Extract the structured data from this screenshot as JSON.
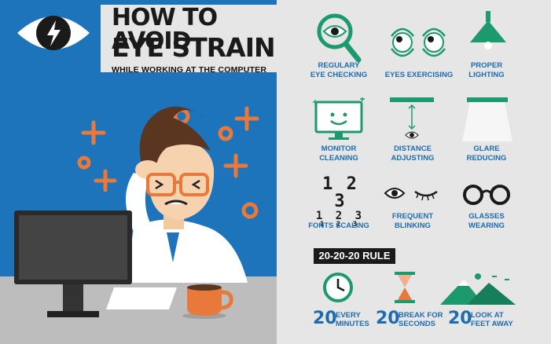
{
  "title": {
    "line1": "HOW TO AVOID",
    "line2": "EYE STRAIN",
    "subtitle": "WHILE WORKING AT THE COMPUTER"
  },
  "tips": [
    {
      "label": "REGULARY\nEYE CHECKING",
      "icon": "magnifier-eye-icon"
    },
    {
      "label": "EYES EXERCISING",
      "icon": "rotating-eyes-icon"
    },
    {
      "label": "PROPER\nLIGHTING",
      "icon": "lamp-icon"
    },
    {
      "label": "MONITOR\nCLEANING",
      "icon": "clean-monitor-icon"
    },
    {
      "label": "DISTANCE\nADJUSTING",
      "icon": "distance-icon"
    },
    {
      "label": "GLARE\nREDUCING",
      "icon": "glare-icon"
    },
    {
      "label": "FONTS SCALING",
      "icon": "font-scale-icon"
    },
    {
      "label": "FREQUENT\nBLINKING",
      "icon": "blink-icon"
    },
    {
      "label": "GLASSES\nWEARING",
      "icon": "glasses-icon"
    }
  ],
  "font_scale": {
    "big": "1 2 3",
    "mid": "1 2 3",
    "small": "1 2 3"
  },
  "rule": {
    "title": "20-20-20 RULE",
    "items": [
      {
        "number": "20",
        "text": "EVERY\nMINUTES",
        "icon": "clock-icon"
      },
      {
        "number": "20",
        "text": "BREAK FOR\nSECONDS",
        "icon": "hourglass-icon"
      },
      {
        "number": "20",
        "text": "LOOK AT\nFEET AWAY",
        "icon": "mountains-icon"
      }
    ]
  },
  "colors": {
    "blue_bg": "#1d74bb",
    "green": "#1c9a6e",
    "label_blue": "#1e6cb0",
    "orange": "#e8793a",
    "light_bg": "#e6e6e6"
  }
}
